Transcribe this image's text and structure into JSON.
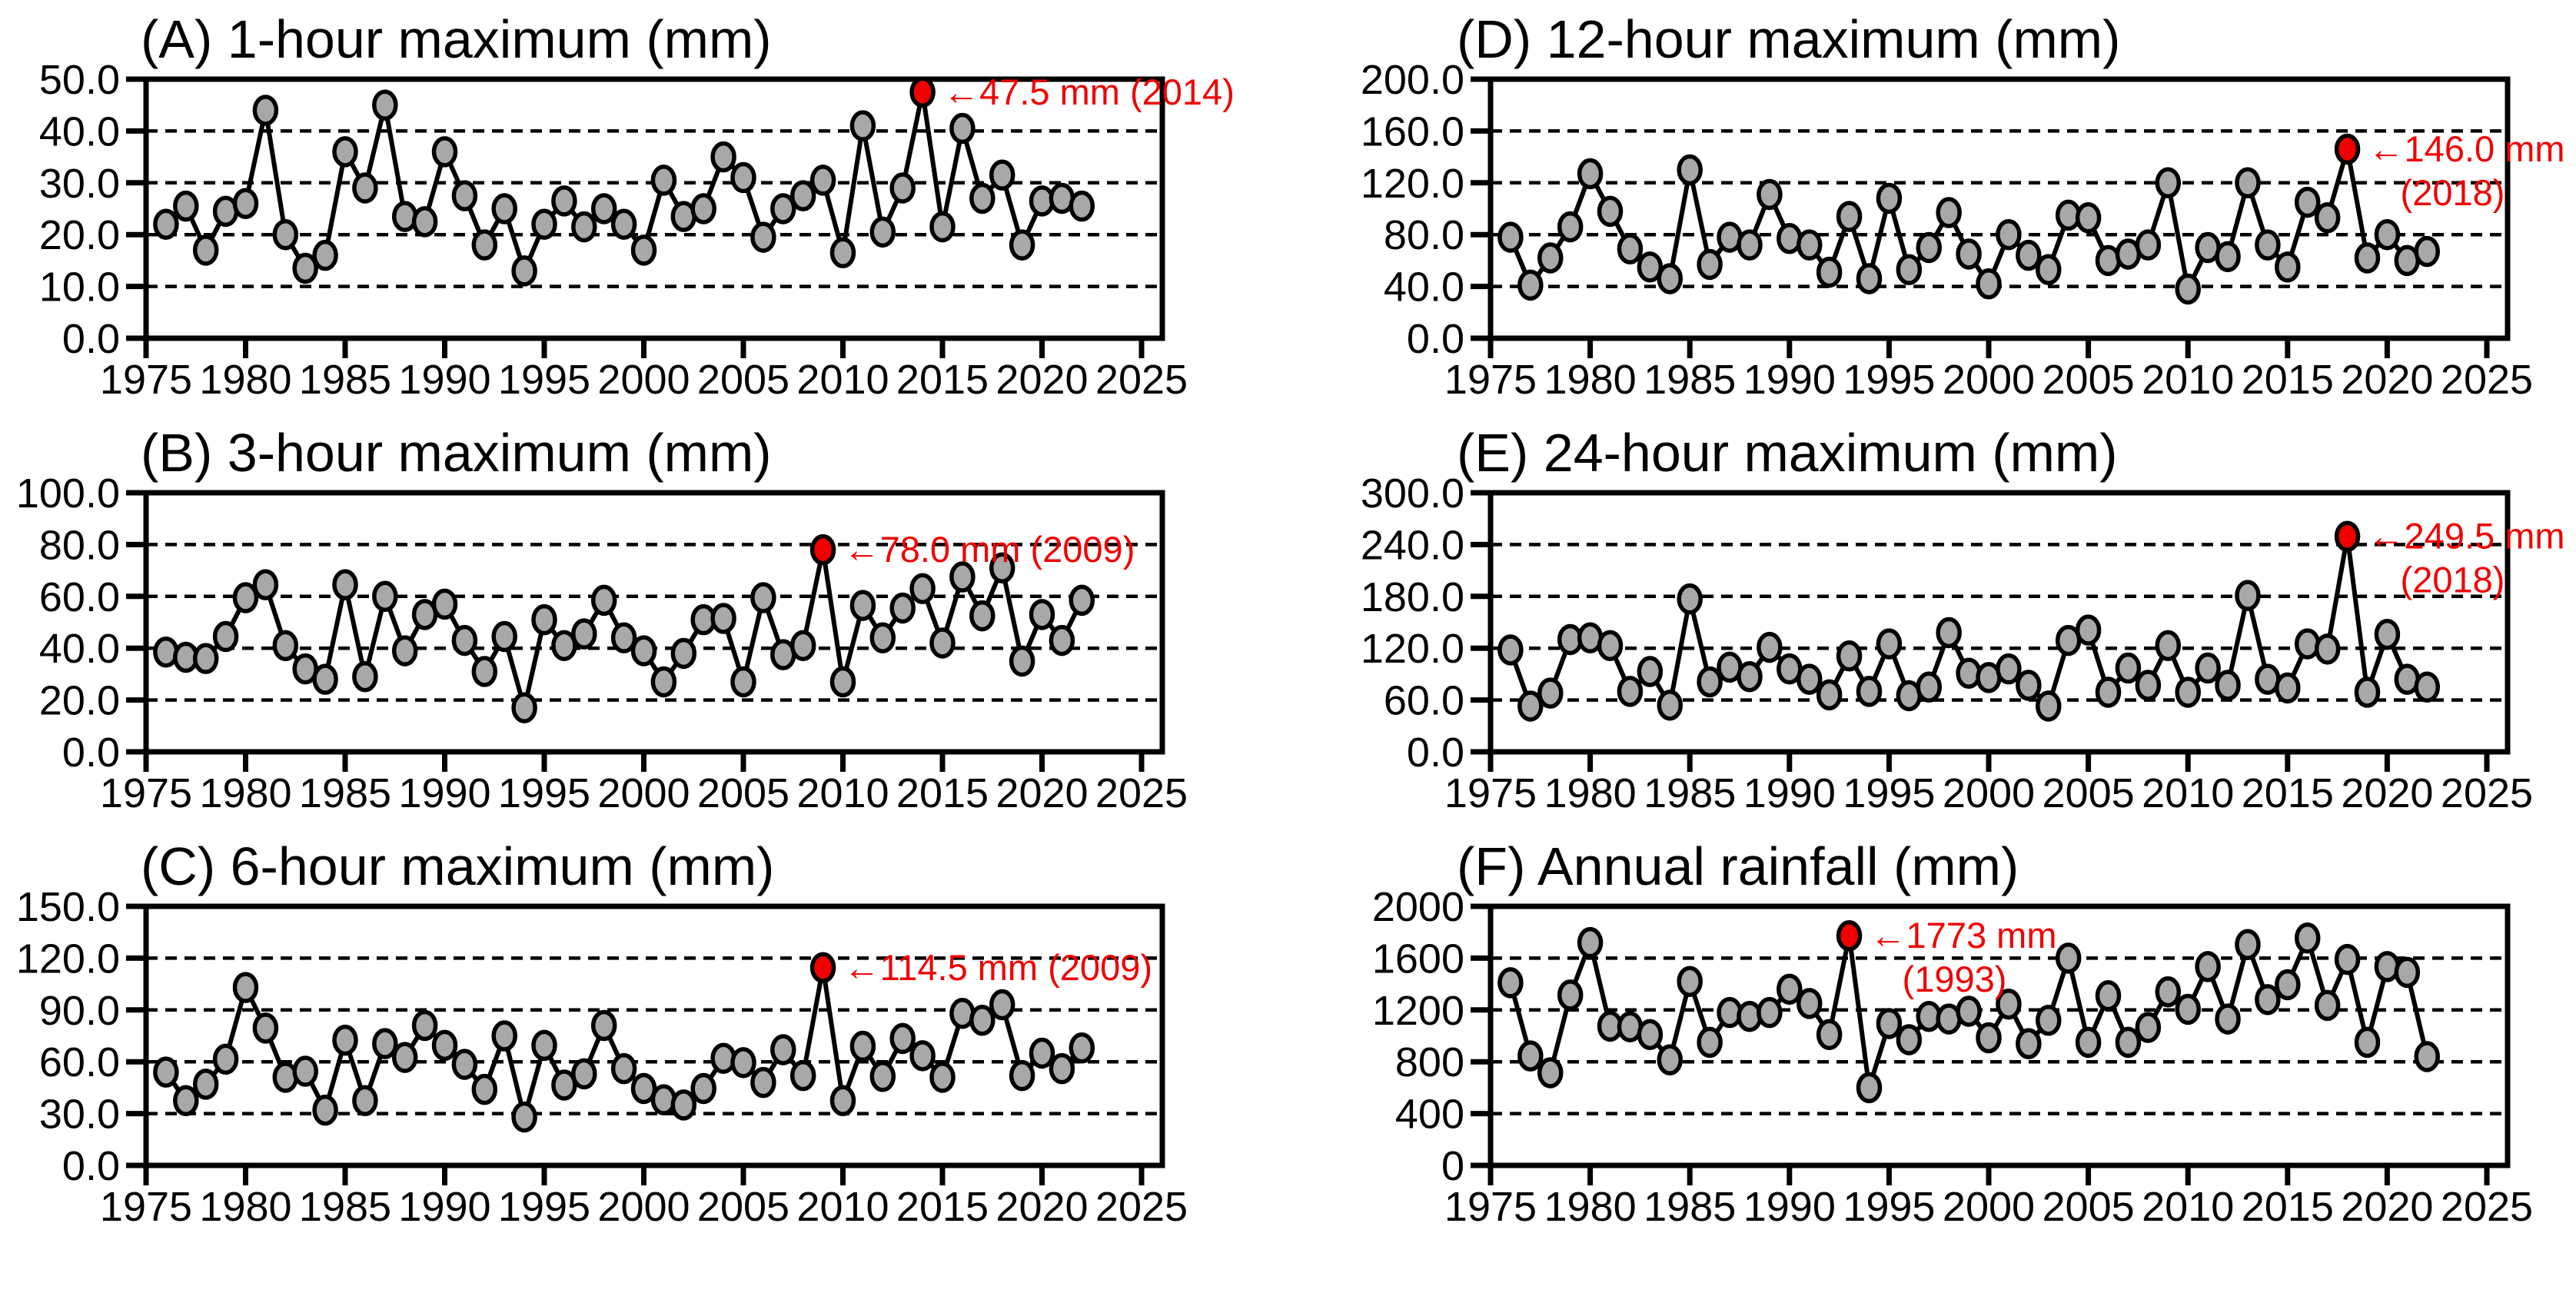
{
  "page": {
    "background": "#ffffff"
  },
  "colors": {
    "line": "#000000",
    "marker_fill": "#a8a8a8",
    "marker_stroke": "#000000",
    "highlight": "#f00000",
    "text": "#000000",
    "grid": "#000000"
  },
  "years": [
    1976,
    1977,
    1978,
    1979,
    1980,
    1981,
    1982,
    1983,
    1984,
    1985,
    1986,
    1987,
    1988,
    1989,
    1990,
    1991,
    1992,
    1993,
    1994,
    1995,
    1996,
    1997,
    1998,
    1999,
    2000,
    2001,
    2002,
    2003,
    2004,
    2005,
    2006,
    2007,
    2008,
    2009,
    2010,
    2011,
    2012,
    2013,
    2014,
    2015,
    2016,
    2017,
    2018,
    2019,
    2020,
    2021,
    2022
  ],
  "x_axis": {
    "tick_labels": [
      "1975",
      "1980",
      "1985",
      "1990",
      "1995",
      "2000",
      "2005",
      "2010",
      "2015",
      "2020",
      "2025"
    ],
    "range": [
      1975,
      2025
    ]
  },
  "chart_data": [
    {
      "panel": "A",
      "col": 0,
      "row": 0,
      "type": "line",
      "title": "(A) 1-hour maximum (mm)",
      "ylim": [
        0,
        50
      ],
      "ytick_labels": [
        "50.0",
        "40.0",
        "30.0",
        "20.0",
        "10.0",
        "0.0"
      ],
      "values": [
        22,
        25.5,
        17,
        24.5,
        26,
        44,
        20,
        13.5,
        16,
        36,
        29,
        45,
        23.5,
        22.5,
        36,
        27.5,
        18,
        25,
        13,
        22,
        26.5,
        21.5,
        25,
        22,
        17,
        30.5,
        23.5,
        25,
        35,
        31,
        19.5,
        25,
        27.5,
        30.5,
        16.5,
        41,
        20.5,
        29,
        47.5,
        21.5,
        40.5,
        27,
        31.5,
        18,
        26.5,
        27,
        25.5
      ],
      "max_annotation": {
        "year": 2014,
        "value": 47.5,
        "lines": [
          "←47.5 mm (2014)"
        ]
      }
    },
    {
      "panel": "B",
      "col": 0,
      "row": 1,
      "type": "line",
      "title": "(B) 3-hour maximum (mm)",
      "ylim": [
        0,
        100
      ],
      "ytick_labels": [
        "100.0",
        "80.0",
        "60.0",
        "40.0",
        "20.0",
        "0.0"
      ],
      "values": [
        38.5,
        36.5,
        36,
        44.5,
        59.5,
        64.5,
        41,
        32,
        28,
        64.5,
        29,
        60,
        39,
        53,
        57,
        43,
        31,
        44.5,
        17,
        51,
        41,
        45.5,
        58.5,
        44,
        39,
        27,
        38,
        51,
        51.5,
        27,
        59.5,
        37.5,
        41,
        78,
        27,
        56.5,
        44,
        55.5,
        63,
        42,
        67.5,
        52.5,
        71,
        35,
        53,
        43,
        58.5
      ],
      "max_annotation": {
        "year": 2009,
        "value": 78.0,
        "lines": [
          "←78.0 mm (2009)"
        ]
      }
    },
    {
      "panel": "C",
      "col": 0,
      "row": 2,
      "type": "line",
      "title": "(C) 6-hour maximum (mm)",
      "ylim": [
        0,
        150
      ],
      "ytick_labels": [
        "150.0",
        "120.0",
        "90.0",
        "60.0",
        "30.0",
        "0.0"
      ],
      "values": [
        54,
        37.5,
        47,
        61.5,
        103,
        79.5,
        51,
        54.5,
        32,
        72.5,
        37.5,
        70.5,
        62.5,
        81,
        69.5,
        58.5,
        44,
        75,
        28,
        69.5,
        46.5,
        53,
        81,
        56,
        44.5,
        38,
        35,
        44.5,
        62,
        59.5,
        48,
        67,
        52,
        114.5,
        37.5,
        69,
        51.5,
        73.5,
        63.5,
        51,
        88,
        84,
        93,
        52,
        65,
        56,
        68
      ],
      "max_annotation": {
        "year": 2009,
        "value": 114.5,
        "lines": [
          "←114.5 mm (2009)"
        ]
      }
    },
    {
      "panel": "D",
      "col": 1,
      "row": 0,
      "type": "line",
      "title": "(D) 12-hour maximum (mm)",
      "ylim": [
        0,
        200
      ],
      "ytick_labels": [
        "200.0",
        "160.0",
        "120.0",
        "80.0",
        "40.0",
        "0.0"
      ],
      "values": [
        78,
        41,
        62,
        86,
        127,
        98,
        69,
        55,
        46,
        130,
        57,
        78,
        72,
        111,
        77,
        72,
        51,
        94,
        46,
        108,
        53,
        70,
        97,
        65,
        42,
        80,
        64,
        53,
        95,
        93,
        60,
        65,
        72,
        120,
        38,
        70,
        63,
        120,
        72,
        55,
        105,
        93,
        146,
        62,
        80,
        60,
        67
      ],
      "max_annotation": {
        "year": 2018,
        "value": 146.0,
        "lines": [
          "←146.0 mm",
          "(2018)"
        ]
      }
    },
    {
      "panel": "E",
      "col": 1,
      "row": 1,
      "type": "line",
      "title": "(E) 24-hour maximum (mm)",
      "ylim": [
        0,
        300
      ],
      "ytick_labels": [
        "300.0",
        "240.0",
        "180.0",
        "120.0",
        "60.0",
        "0.0"
      ],
      "values": [
        118,
        53,
        68,
        130,
        132,
        123,
        70,
        93,
        54,
        177,
        81,
        98,
        87,
        121,
        96,
        84,
        66,
        111,
        70,
        125,
        65,
        75,
        138,
        91,
        86,
        96,
        77,
        53,
        129,
        141,
        69,
        97,
        77,
        123,
        69,
        97,
        77,
        181,
        84,
        74,
        125,
        119,
        249.5,
        69,
        136,
        84,
        75
      ],
      "max_annotation": {
        "year": 2018,
        "value": 249.5,
        "lines": [
          "←249.5 mm",
          "(2018)"
        ]
      }
    },
    {
      "panel": "F",
      "col": 1,
      "row": 2,
      "type": "line",
      "title": "(F) Annual rainfall (mm)",
      "ylim": [
        0,
        2000
      ],
      "ytick_labels": [
        "2000",
        "1600",
        "1200",
        "800",
        "400",
        "0"
      ],
      "values": [
        1410,
        845,
        715,
        1315,
        1720,
        1075,
        1070,
        1010,
        815,
        1420,
        950,
        1180,
        1150,
        1180,
        1360,
        1250,
        1010,
        1773,
        600,
        1095,
        970,
        1150,
        1130,
        1190,
        985,
        1245,
        940,
        1120,
        1600,
        950,
        1310,
        950,
        1065,
        1340,
        1205,
        1535,
        1130,
        1705,
        1280,
        1395,
        1755,
        1235,
        1590,
        950,
        1535,
        1490,
        840
      ],
      "max_annotation": {
        "year": 1993,
        "value": 1773,
        "lines": [
          "←1773 mm",
          "(1993)"
        ]
      }
    }
  ]
}
